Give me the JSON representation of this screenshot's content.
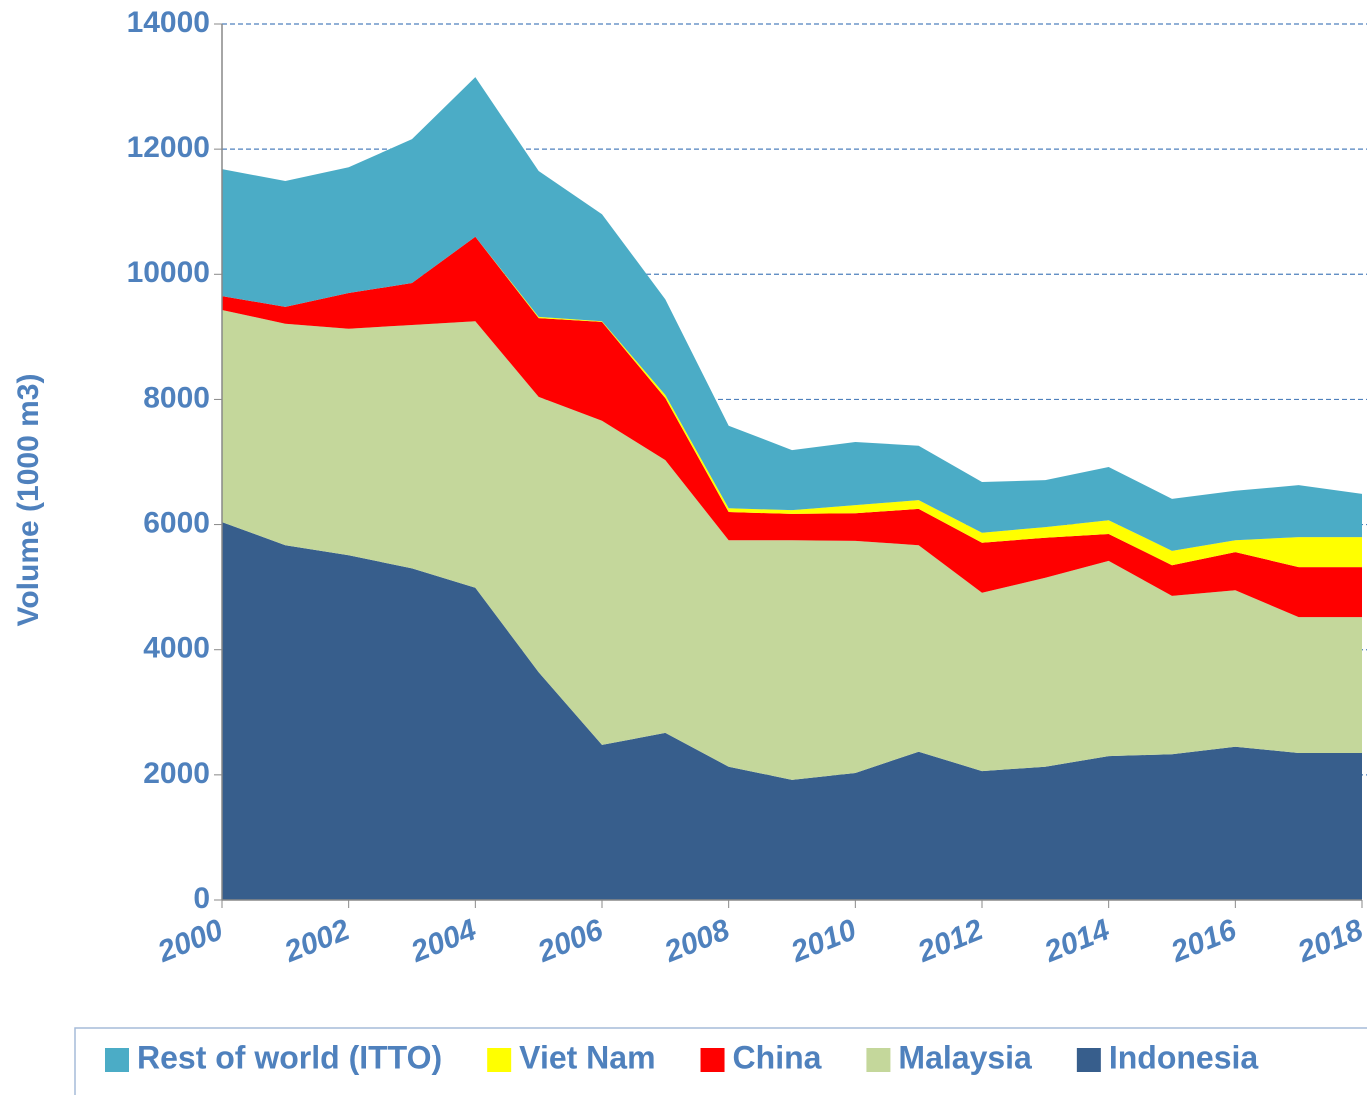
{
  "chart_data": {
    "type": "stacked_area",
    "y_label": "Volume (1000 m3)",
    "x": [
      2000,
      2001,
      2002,
      2003,
      2004,
      2005,
      2006,
      2007,
      2008,
      2009,
      2010,
      2011,
      2012,
      2013,
      2014,
      2015,
      2016,
      2017,
      2018
    ],
    "xlim": [
      2000,
      2018
    ],
    "xticks": [
      2000,
      2002,
      2004,
      2006,
      2008,
      2010,
      2012,
      2014,
      2016,
      2018
    ],
    "ylim": [
      0,
      14000
    ],
    "yticks": [
      0,
      2000,
      4000,
      6000,
      8000,
      10000,
      12000,
      14000
    ],
    "grid": true,
    "legend": "bottom",
    "series": [
      {
        "name": "Indonesia",
        "color": "#375e8c",
        "values": [
          6040,
          5670,
          5510,
          5300,
          4990,
          3640,
          2480,
          2670,
          2130,
          1920,
          2030,
          2370,
          2060,
          2130,
          2300,
          2330,
          2450,
          2350,
          2350
        ]
      },
      {
        "name": "Malaysia",
        "color": "#c4d79b",
        "values": [
          3390,
          3540,
          3620,
          3890,
          4260,
          4400,
          5180,
          4360,
          3620,
          3830,
          3710,
          3300,
          2850,
          3020,
          3120,
          2530,
          2500,
          2170,
          2170
        ]
      },
      {
        "name": "China",
        "color": "#ff0000",
        "values": [
          220,
          270,
          570,
          670,
          1350,
          1260,
          1580,
          990,
          450,
          420,
          440,
          580,
          800,
          640,
          430,
          490,
          610,
          800,
          800
        ]
      },
      {
        "name": "Viet Nam",
        "color": "#ffff00",
        "values": [
          0,
          0,
          0,
          0,
          0,
          20,
          10,
          50,
          60,
          60,
          130,
          140,
          160,
          170,
          220,
          230,
          190,
          480,
          480
        ]
      },
      {
        "name": "Rest of world (ITTO)",
        "color": "#4bacc6",
        "values": [
          2030,
          2010,
          2010,
          2300,
          2550,
          2330,
          1710,
          1530,
          1320,
          960,
          1010,
          870,
          810,
          750,
          850,
          830,
          790,
          830,
          690
        ]
      }
    ]
  }
}
